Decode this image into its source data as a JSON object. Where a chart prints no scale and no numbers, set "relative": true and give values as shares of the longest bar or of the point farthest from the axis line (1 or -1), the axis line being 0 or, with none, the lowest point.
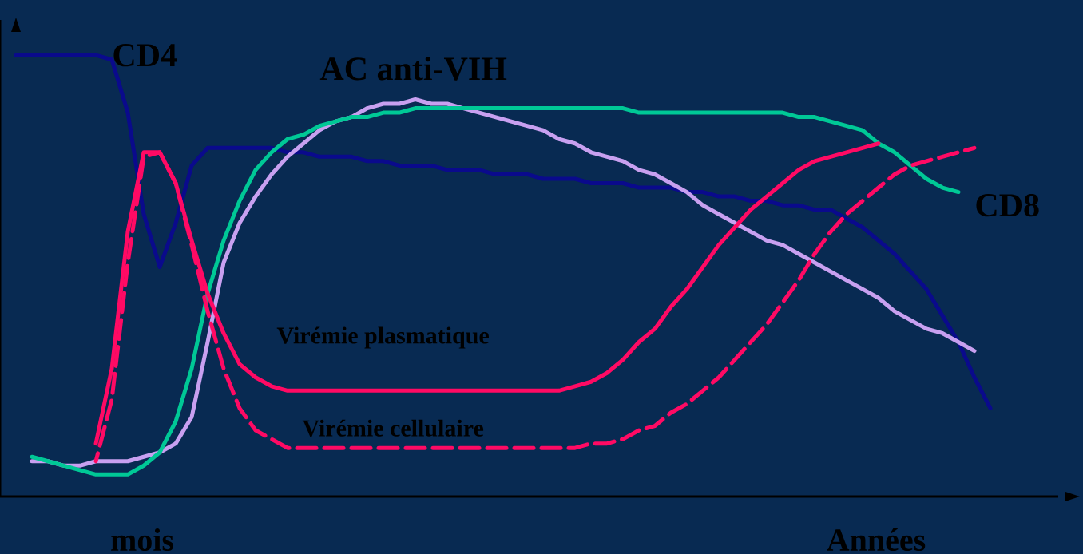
{
  "chart_data": {
    "type": "line",
    "relative": true,
    "categories": [
      null,
      null,
      null,
      null,
      null,
      null,
      null,
      null,
      null,
      null,
      null,
      null,
      null,
      null,
      null,
      null,
      null,
      null,
      null,
      null,
      null,
      null,
      null,
      null,
      null,
      null,
      null,
      null,
      null,
      null,
      null,
      null,
      null,
      null,
      null,
      null,
      null,
      null,
      null,
      null,
      null,
      null,
      null,
      null,
      null,
      null,
      null,
      null,
      null,
      null,
      null,
      null,
      null,
      null,
      null,
      null,
      null,
      null,
      null,
      null,
      null,
      null,
      null
    ],
    "annotations": [
      "mois",
      "Années"
    ],
    "series": [
      {
        "name": "CD4",
        "color": "#0a0a8c",
        "line_style": "solid",
        "values": [
          1.0,
          1.0,
          1.0,
          1.0,
          1.0,
          1.0,
          0.99,
          0.87,
          0.64,
          0.52,
          0.62,
          0.75,
          0.79,
          0.79,
          0.79,
          0.79,
          0.79,
          0.78,
          0.78,
          0.77,
          0.77,
          0.77,
          0.76,
          0.76,
          0.75,
          0.75,
          0.75,
          0.74,
          0.74,
          0.74,
          0.73,
          0.73,
          0.73,
          0.72,
          0.72,
          0.72,
          0.71,
          0.71,
          0.71,
          0.7,
          0.7,
          0.7,
          0.69,
          0.69,
          0.68,
          0.68,
          0.67,
          0.67,
          0.66,
          0.66,
          0.65,
          0.65,
          0.63,
          0.61,
          0.58,
          0.55,
          0.51,
          0.47,
          0.41,
          0.35,
          0.27,
          0.2,
          null
        ]
      },
      {
        "name": "AC anti-VIH",
        "color": "#c8a0f0",
        "line_style": "solid",
        "values": [
          null,
          0.08,
          0.08,
          0.07,
          0.07,
          0.08,
          0.08,
          0.08,
          0.09,
          0.1,
          0.12,
          0.18,
          0.35,
          0.53,
          0.62,
          0.68,
          0.73,
          0.77,
          0.8,
          0.83,
          0.85,
          0.86,
          0.88,
          0.89,
          0.89,
          0.9,
          0.89,
          0.89,
          0.88,
          0.87,
          0.86,
          0.85,
          0.84,
          0.83,
          0.81,
          0.8,
          0.78,
          0.77,
          0.76,
          0.74,
          0.73,
          0.71,
          0.69,
          0.66,
          0.64,
          0.62,
          0.6,
          0.58,
          0.57,
          0.55,
          0.53,
          0.51,
          0.49,
          0.47,
          0.45,
          0.42,
          0.4,
          0.38,
          0.37,
          0.35,
          0.33,
          null,
          null
        ]
      },
      {
        "name": "CD8",
        "color": "#00c896",
        "line_style": "solid",
        "values": [
          null,
          0.09,
          0.08,
          0.07,
          0.06,
          0.05,
          0.05,
          0.05,
          0.07,
          0.1,
          0.17,
          0.29,
          0.46,
          0.58,
          0.67,
          0.74,
          0.78,
          0.81,
          0.82,
          0.84,
          0.85,
          0.86,
          0.86,
          0.87,
          0.87,
          0.88,
          0.88,
          0.88,
          0.88,
          0.88,
          0.88,
          0.88,
          0.88,
          0.88,
          0.88,
          0.88,
          0.88,
          0.88,
          0.88,
          0.87,
          0.87,
          0.87,
          0.87,
          0.87,
          0.87,
          0.87,
          0.87,
          0.87,
          0.87,
          0.86,
          0.86,
          0.85,
          0.84,
          0.83,
          0.8,
          0.78,
          0.75,
          0.72,
          0.7,
          0.69,
          null,
          null,
          null
        ]
      },
      {
        "name": "Virémie plasmatique",
        "color": "#ff0a64",
        "line_style": "solid",
        "values": [
          null,
          null,
          null,
          null,
          null,
          0.12,
          0.29,
          0.6,
          0.78,
          0.78,
          0.71,
          0.58,
          0.46,
          0.37,
          0.3,
          0.27,
          0.25,
          0.24,
          0.24,
          0.24,
          0.24,
          0.24,
          0.24,
          0.24,
          0.24,
          0.24,
          0.24,
          0.24,
          0.24,
          0.24,
          0.24,
          0.24,
          0.24,
          0.24,
          0.24,
          0.25,
          0.26,
          0.28,
          0.31,
          0.35,
          0.38,
          0.43,
          0.47,
          0.52,
          0.57,
          0.61,
          0.65,
          0.68,
          0.71,
          0.74,
          0.76,
          0.77,
          0.78,
          0.79,
          0.8,
          null,
          null,
          null,
          null,
          null,
          null,
          null,
          null
        ]
      },
      {
        "name": "Virémie cellulaire",
        "color": "#ff0a64",
        "line_style": "dashed",
        "values": [
          null,
          null,
          null,
          null,
          null,
          0.08,
          0.22,
          0.53,
          0.77,
          0.78,
          0.71,
          0.57,
          0.42,
          0.29,
          0.2,
          0.15,
          0.13,
          0.11,
          0.11,
          0.11,
          0.11,
          0.11,
          0.11,
          0.11,
          0.11,
          0.11,
          0.11,
          0.11,
          0.11,
          0.11,
          0.11,
          0.11,
          0.11,
          0.11,
          0.11,
          0.11,
          0.12,
          0.12,
          0.13,
          0.15,
          0.16,
          0.19,
          0.21,
          0.24,
          0.27,
          0.31,
          0.35,
          0.39,
          0.44,
          0.49,
          0.55,
          0.6,
          0.64,
          0.67,
          0.7,
          0.73,
          0.75,
          0.76,
          0.77,
          0.78,
          0.79,
          null,
          null
        ]
      }
    ]
  }
}
